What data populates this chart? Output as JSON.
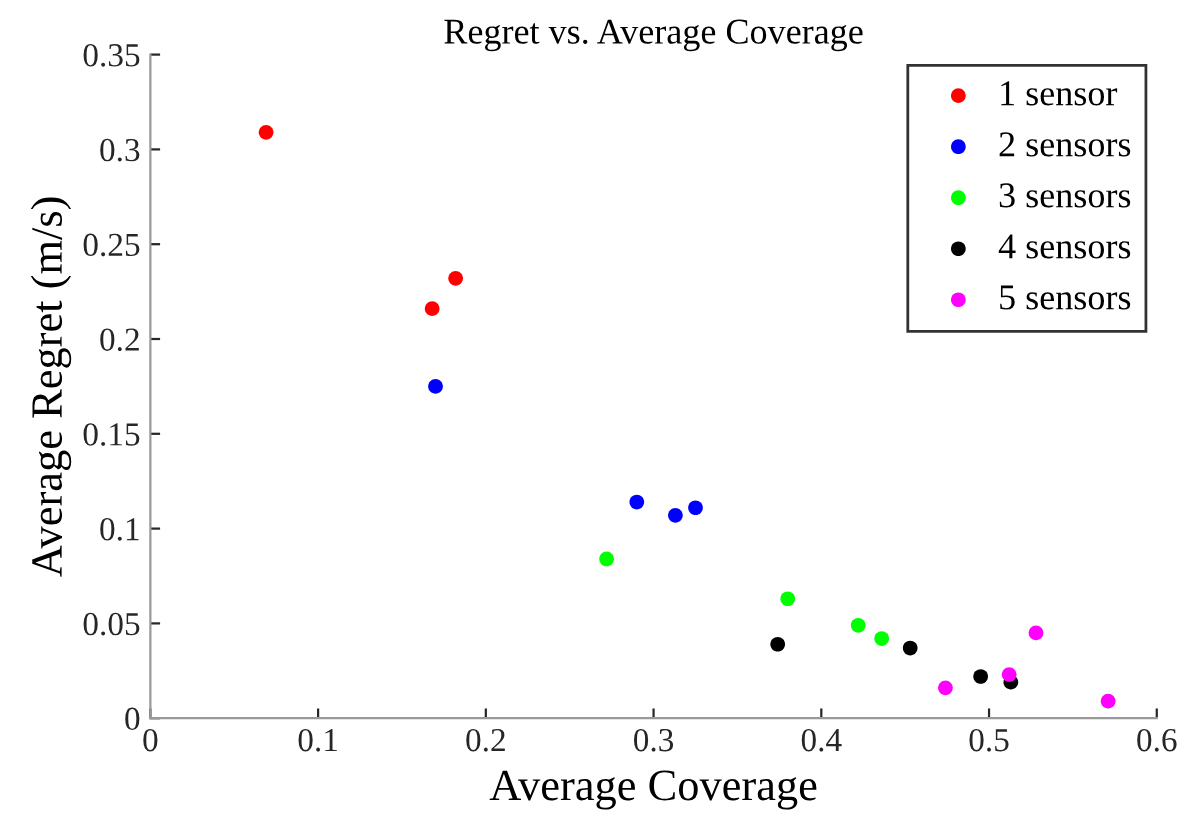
{
  "chart_data": {
    "type": "scatter",
    "title": "Regret vs. Average Coverage",
    "xlabel": "Average Coverage",
    "ylabel": "Average Regret (m/s)",
    "xlim": [
      0,
      0.6
    ],
    "xticks": [
      0,
      0.1,
      0.2,
      0.3,
      0.4,
      0.5,
      0.6
    ],
    "ylim": [
      0,
      0.35
    ],
    "yticks": [
      0,
      0.05,
      0.1,
      0.15,
      0.2,
      0.25,
      0.3,
      0.35
    ],
    "grid": false,
    "legend": "top right",
    "marker": "circle",
    "series": [
      {
        "name": "1 sensor",
        "color": "#ff0000",
        "x": [
          0.069,
          0.182,
          0.168
        ],
        "values": [
          0.309,
          0.232,
          0.216
        ]
      },
      {
        "name": "2 sensors",
        "color": "#0000ff",
        "x": [
          0.17,
          0.29,
          0.313,
          0.325
        ],
        "values": [
          0.175,
          0.114,
          0.107,
          0.111
        ]
      },
      {
        "name": "3 sensors",
        "color": "#00ff00",
        "x": [
          0.272,
          0.38,
          0.422,
          0.436
        ],
        "values": [
          0.084,
          0.063,
          0.049,
          0.042
        ]
      },
      {
        "name": "4 sensors",
        "color": "#000000",
        "x": [
          0.374,
          0.453,
          0.495,
          0.513
        ],
        "values": [
          0.039,
          0.037,
          0.022,
          0.019
        ]
      },
      {
        "name": "5 sensors",
        "color": "#ff00ff",
        "x": [
          0.474,
          0.512,
          0.528,
          0.571
        ],
        "values": [
          0.016,
          0.023,
          0.045,
          0.009
        ]
      }
    ]
  }
}
